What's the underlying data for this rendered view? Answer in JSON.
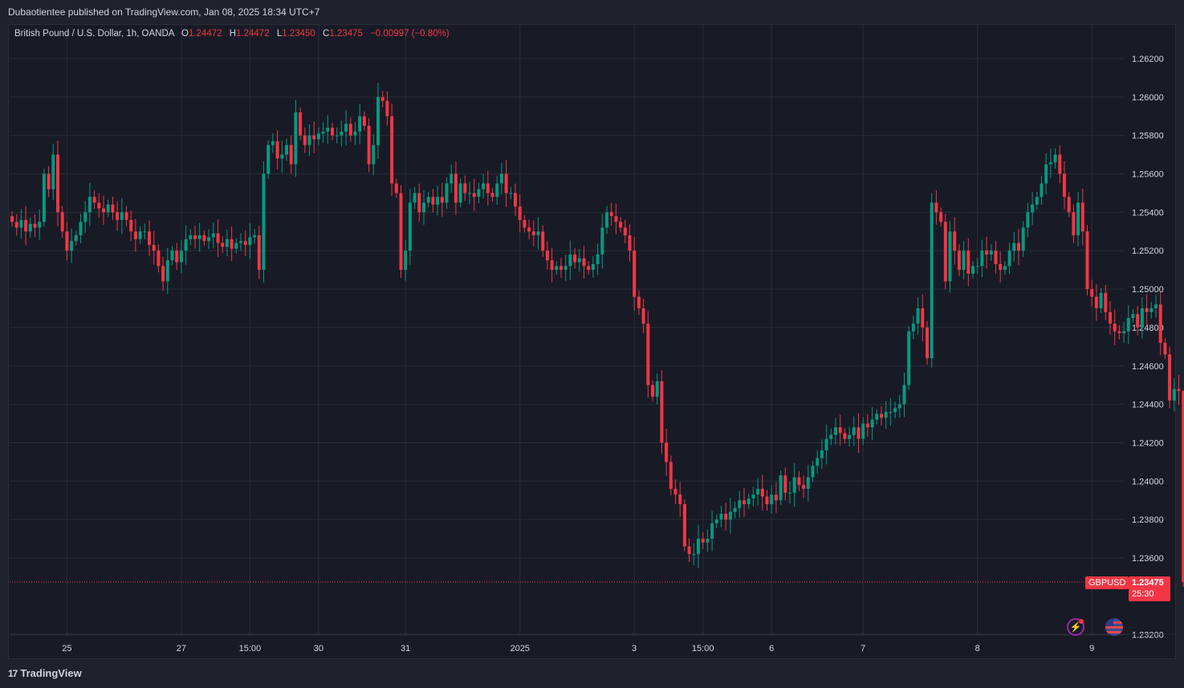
{
  "header": {
    "published": "Dubaotientee published on TradingView.com, Jan 08, 2025 18:34 UTC+7"
  },
  "legend": {
    "symbol": "British Pound / U.S. Dollar, 1h, OANDA",
    "o_label": "O",
    "o": "1.24472",
    "h_label": "H",
    "h": "1.24472",
    "l_label": "L",
    "l": "1.23450",
    "c_label": "C",
    "c": "1.23475",
    "change": "−0.00997 (−0.80%)"
  },
  "price_tags": {
    "symbol": "GBPUSD",
    "last": "1.23475",
    "countdown": "25:30"
  },
  "footer": {
    "brand": "TradingView",
    "brand_mark": "17"
  },
  "icons": {
    "alert": "lightning-icon",
    "flag": "us-flag-icon"
  },
  "colors": {
    "up": "#089981",
    "down": "#f23645",
    "background": "#181b26",
    "grid": "#2a2e39",
    "text": "#d1d4dc"
  },
  "chart_data": {
    "type": "candlestick",
    "title": "British Pound / U.S. Dollar, 1h, OANDA",
    "ylim": [
      1.232,
      1.263
    ],
    "y_ticks": [
      "1.26200",
      "1.26000",
      "1.25800",
      "1.25600",
      "1.25400",
      "1.25200",
      "1.25000",
      "1.24800",
      "1.24600",
      "1.24400",
      "1.24200",
      "1.24000",
      "1.23800",
      "1.23600",
      "1.23200"
    ],
    "x_ticks": [
      {
        "label": "25",
        "i": 12
      },
      {
        "label": "27",
        "i": 37
      },
      {
        "label": "15:00",
        "i": 52
      },
      {
        "label": "30",
        "i": 67
      },
      {
        "label": "31",
        "i": 86
      },
      {
        "label": "2025",
        "i": 111
      },
      {
        "label": "3",
        "i": 136
      },
      {
        "label": "15:00",
        "i": 151
      },
      {
        "label": "6",
        "i": 166
      },
      {
        "label": "7",
        "i": 186
      },
      {
        "label": "8",
        "i": 211
      },
      {
        "label": "9",
        "i": 236
      }
    ],
    "last_price": 1.23475,
    "closes": [
      1.2535,
      1.2532,
      1.2536,
      1.253,
      1.2534,
      1.2532,
      1.2535,
      1.256,
      1.2552,
      1.257,
      1.254,
      1.253,
      1.252,
      1.2525,
      1.2528,
      1.2535,
      1.254,
      1.2548,
      1.2545,
      1.2542,
      1.254,
      1.2544,
      1.254,
      1.2536,
      1.254,
      1.2536,
      1.253,
      1.2526,
      1.253,
      1.253,
      1.2523,
      1.252,
      1.2512,
      1.2504,
      1.2515,
      1.252,
      1.2514,
      1.252,
      1.2526,
      1.2528,
      1.2526,
      1.2528,
      1.2525,
      1.2527,
      1.2529,
      1.2524,
      1.2522,
      1.2526,
      1.2521,
      1.2524,
      1.2525,
      1.2523,
      1.2527,
      1.2528,
      1.251,
      1.256,
      1.2575,
      1.2577,
      1.2568,
      1.257,
      1.2575,
      1.2565,
      1.2592,
      1.258,
      1.2575,
      1.258,
      1.2578,
      1.2581,
      1.2582,
      1.2584,
      1.258,
      1.258,
      1.2582,
      1.2586,
      1.258,
      1.2582,
      1.259,
      1.2585,
      1.2565,
      1.2575,
      1.26,
      1.2598,
      1.259,
      1.2555,
      1.255,
      1.251,
      1.252,
      1.2545,
      1.255,
      1.254,
      1.2545,
      1.2548,
      1.2544,
      1.2548,
      1.2545,
      1.2555,
      1.256,
      1.2545,
      1.2555,
      1.255,
      1.255,
      1.2548,
      1.2552,
      1.2555,
      1.255,
      1.2548,
      1.2555,
      1.256,
      1.255,
      1.255,
      1.2543,
      1.2536,
      1.2532,
      1.253,
      1.2528,
      1.253,
      1.252,
      1.2515,
      1.251,
      1.2512,
      1.251,
      1.2512,
      1.2518,
      1.2514,
      1.2516,
      1.2512,
      1.251,
      1.2513,
      1.2518,
      1.2532,
      1.254,
      1.2538,
      1.2535,
      1.2532,
      1.2528,
      1.252,
      1.2496,
      1.249,
      1.2482,
      1.245,
      1.2444,
      1.2452,
      1.242,
      1.241,
      1.2396,
      1.2393,
      1.2388,
      1.2366,
      1.2362,
      1.2362,
      1.237,
      1.2368,
      1.237,
      1.2378,
      1.238,
      1.2383,
      1.238,
      1.2384,
      1.2386,
      1.239,
      1.2388,
      1.2391,
      1.2393,
      1.2396,
      1.2392,
      1.2388,
      1.2393,
      1.239,
      1.2403,
      1.2394,
      1.2394,
      1.2402,
      1.2398,
      1.2396,
      1.2402,
      1.2408,
      1.2412,
      1.2416,
      1.2422,
      1.2424,
      1.2428,
      1.2425,
      1.2422,
      1.2424,
      1.2428,
      1.2422,
      1.243,
      1.2428,
      1.2432,
      1.2435,
      1.2433,
      1.2436,
      1.2436,
      1.2438,
      1.244,
      1.245,
      1.2478,
      1.2482,
      1.249,
      1.248,
      1.2464,
      1.2545,
      1.254,
      1.2535,
      1.2504,
      1.253,
      1.252,
      1.251,
      1.252,
      1.2508,
      1.2512,
      1.2512,
      1.252,
      1.2518,
      1.252,
      1.2513,
      1.251,
      1.2512,
      1.252,
      1.2524,
      1.252,
      1.2532,
      1.254,
      1.2544,
      1.2548,
      1.2555,
      1.2565,
      1.2566,
      1.257,
      1.256,
      1.2548,
      1.254,
      1.2528,
      1.2545,
      1.253,
      1.25,
      1.2496,
      1.249,
      1.2498,
      1.2488,
      1.2482,
      1.2478,
      1.2477,
      1.2478,
      1.2485,
      1.2487,
      1.248,
      1.249,
      1.2488,
      1.249,
      1.2492,
      1.2472,
      1.2466,
      1.2442,
      1.2448,
      1.2447,
      1.23475
    ]
  }
}
